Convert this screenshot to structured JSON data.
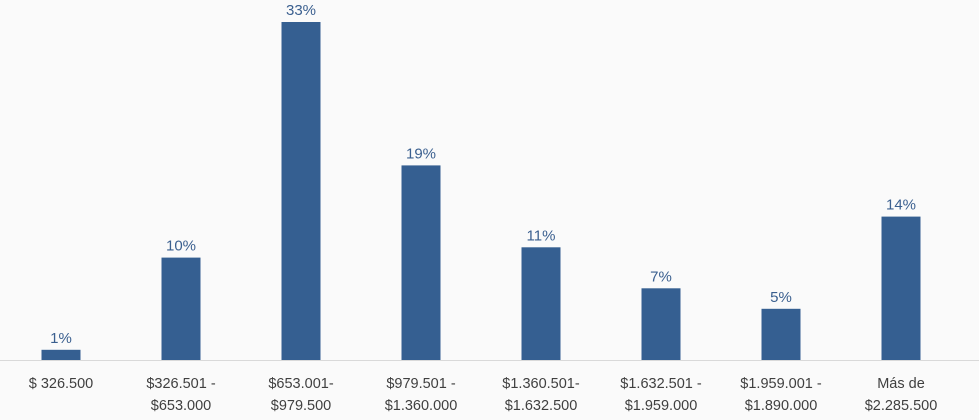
{
  "chart_data": {
    "type": "bar",
    "categories": [
      [
        "$ 326.500"
      ],
      [
        "$326.501 -",
        "$653.000"
      ],
      [
        "$653.001-",
        "$979.500"
      ],
      [
        "$979.501 -",
        "$1.360.000"
      ],
      [
        "$1.360.501-",
        "$1.632.500"
      ],
      [
        "$1.632.501 -",
        "$1.959.000"
      ],
      [
        "$1.959.001 -",
        "$1.890.000"
      ],
      [
        "Más de",
        "$2.285.500"
      ]
    ],
    "values": [
      1,
      10,
      33,
      19,
      11,
      7,
      5,
      14
    ],
    "data_labels": [
      "1%",
      "10%",
      "33%",
      "19%",
      "11%",
      "7%",
      "5%",
      "14%"
    ],
    "title": "",
    "xlabel": "",
    "ylabel": "",
    "ylim": [
      0,
      33
    ],
    "grid": false,
    "legend": "none",
    "colors": {
      "bar": "#355f91",
      "label": "#3a5f8f",
      "tick": "#404040",
      "axis": "#d9d9d9",
      "background": "#fafafa"
    }
  }
}
